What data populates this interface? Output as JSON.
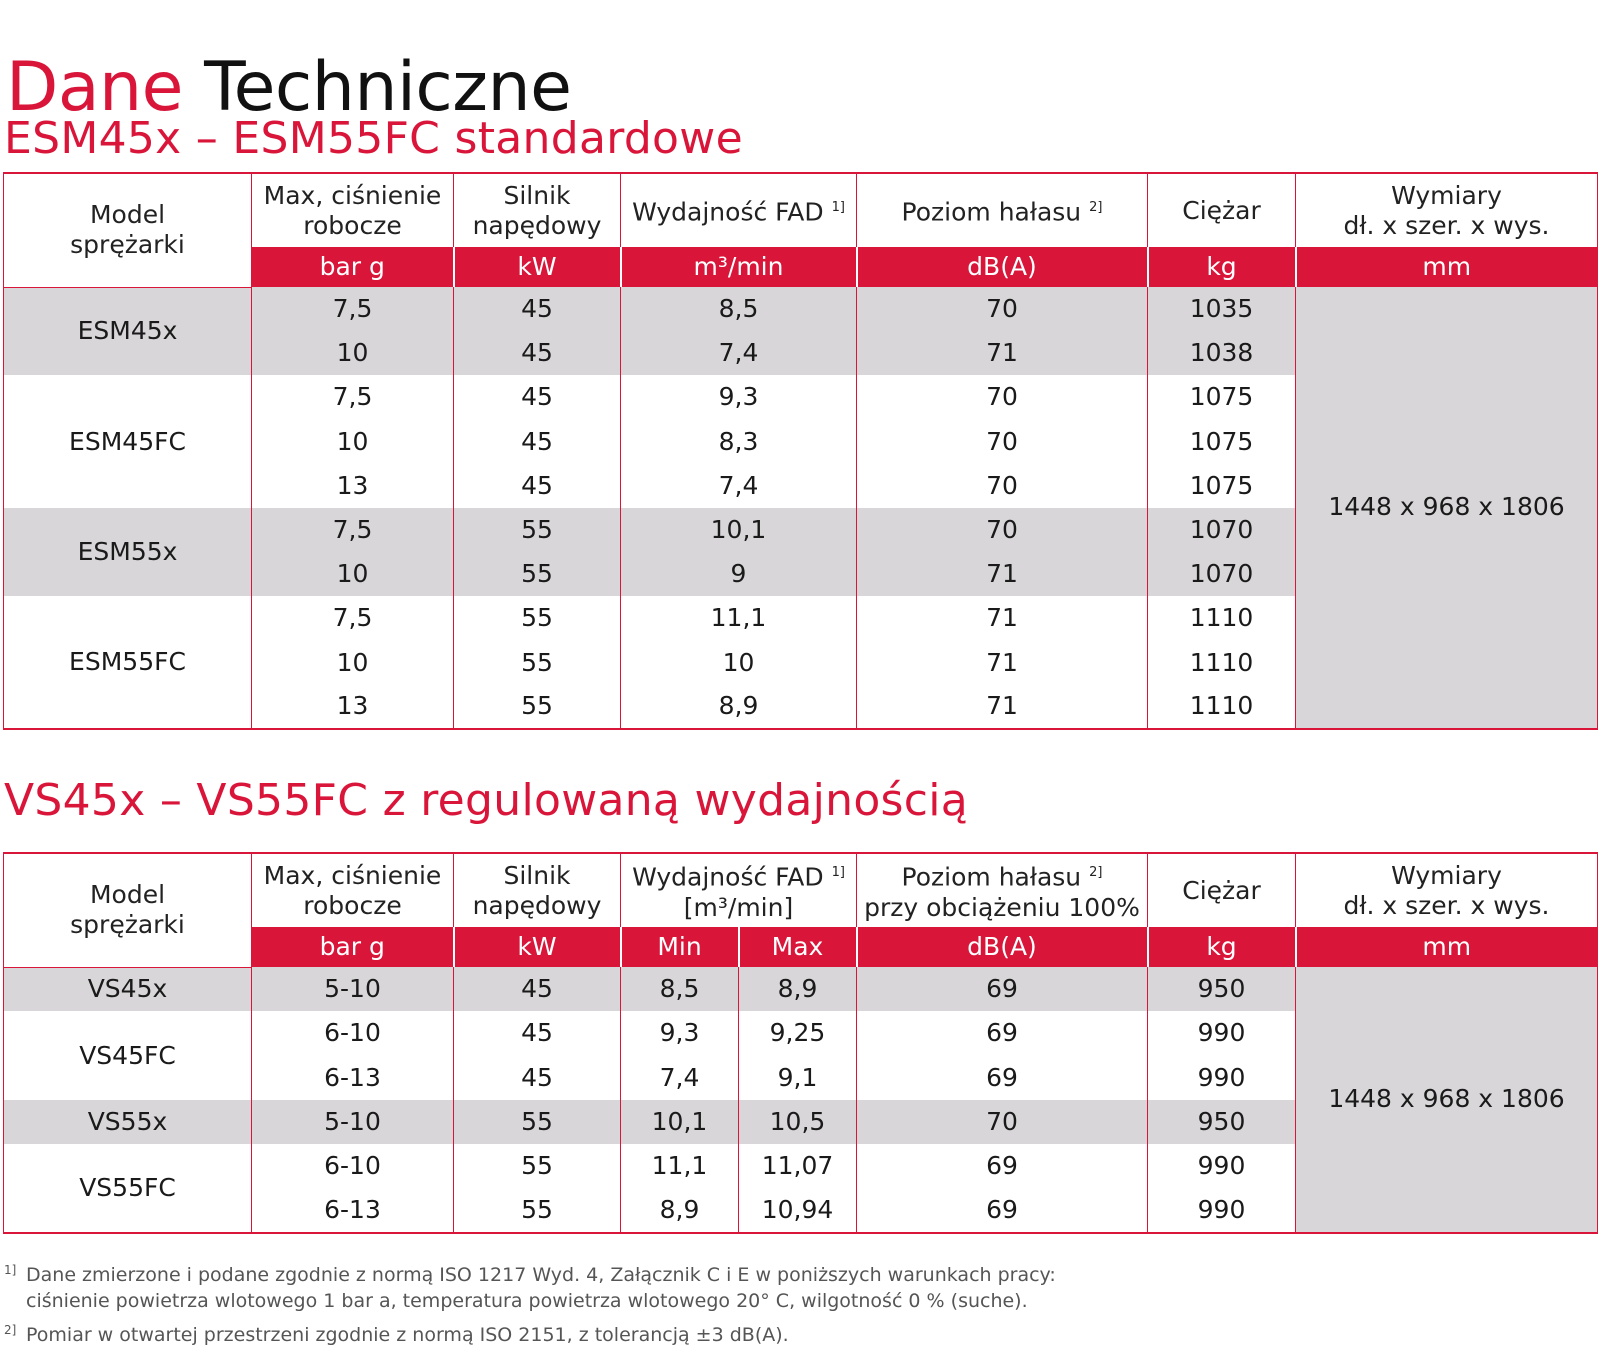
{
  "title": {
    "part1": "Dane",
    "part2": "Techniczne"
  },
  "section1": {
    "title": "ESM45x – ESM55FC standardowe",
    "headers": {
      "model": [
        "Model",
        "sprężarki"
      ],
      "pressure": [
        "Max, ciśnienie",
        "robocze"
      ],
      "motor": [
        "Silnik",
        "napędowy"
      ],
      "fad": "Wydajność FAD",
      "fad_note": "1]",
      "noise": "Poziom hałasu",
      "noise_note": "2]",
      "weight": "Ciężar",
      "dims": [
        "Wymiary",
        "dł. x szer. x wys."
      ]
    },
    "units": {
      "pressure": "bar g",
      "motor": "kW",
      "fad": "m³/min",
      "noise": "dB(A)",
      "weight": "kg",
      "dims": "mm"
    },
    "dimensions": "1448 x 968 x 1806",
    "groups": [
      {
        "model": "ESM45x",
        "rows": [
          {
            "pressure": "7,5",
            "motor": "45",
            "fad": "8,5",
            "noise": "70",
            "weight": "1035"
          },
          {
            "pressure": "10",
            "motor": "45",
            "fad": "7,4",
            "noise": "71",
            "weight": "1038"
          }
        ]
      },
      {
        "model": "ESM45FC",
        "rows": [
          {
            "pressure": "7,5",
            "motor": "45",
            "fad": "9,3",
            "noise": "70",
            "weight": "1075"
          },
          {
            "pressure": "10",
            "motor": "45",
            "fad": "8,3",
            "noise": "70",
            "weight": "1075"
          },
          {
            "pressure": "13",
            "motor": "45",
            "fad": "7,4",
            "noise": "70",
            "weight": "1075"
          }
        ]
      },
      {
        "model": "ESM55x",
        "rows": [
          {
            "pressure": "7,5",
            "motor": "55",
            "fad": "10,1",
            "noise": "70",
            "weight": "1070"
          },
          {
            "pressure": "10",
            "motor": "55",
            "fad": "9",
            "noise": "71",
            "weight": "1070"
          }
        ]
      },
      {
        "model": "ESM55FC",
        "rows": [
          {
            "pressure": "7,5",
            "motor": "55",
            "fad": "11,1",
            "noise": "71",
            "weight": "1110"
          },
          {
            "pressure": "10",
            "motor": "55",
            "fad": "10",
            "noise": "71",
            "weight": "1110"
          },
          {
            "pressure": "13",
            "motor": "55",
            "fad": "8,9",
            "noise": "71",
            "weight": "1110"
          }
        ]
      }
    ]
  },
  "section2": {
    "title": "VS45x – VS55FC z regulowaną wydajnością",
    "headers": {
      "model": [
        "Model",
        "sprężarki"
      ],
      "pressure": [
        "Max, ciśnienie",
        "robocze"
      ],
      "motor": [
        "Silnik",
        "napędowy"
      ],
      "fad": "Wydajność FAD",
      "fad_note": "1]",
      "fad_unit": "[m³/min]",
      "noise": "Poziom hałasu",
      "noise_note": "2]",
      "noise_sub": "przy obciążeniu 100%",
      "weight": "Ciężar",
      "dims": [
        "Wymiary",
        "dł. x szer. x wys."
      ]
    },
    "units": {
      "pressure": "bar g",
      "motor": "kW",
      "fad_min": "Min",
      "fad_max": "Max",
      "noise": "dB(A)",
      "weight": "kg",
      "dims": "mm"
    },
    "dimensions": "1448 x 968 x 1806",
    "groups": [
      {
        "model": "VS45x",
        "rows": [
          {
            "pressure": "5-10",
            "motor": "45",
            "min": "8,5",
            "max": "8,9",
            "noise": "69",
            "weight": "950"
          }
        ]
      },
      {
        "model": "VS45FC",
        "rows": [
          {
            "pressure": "6-10",
            "motor": "45",
            "min": "9,3",
            "max": "9,25",
            "noise": "69",
            "weight": "990"
          },
          {
            "pressure": "6-13",
            "motor": "45",
            "min": "7,4",
            "max": "9,1",
            "noise": "69",
            "weight": "990"
          }
        ]
      },
      {
        "model": "VS55x",
        "rows": [
          {
            "pressure": "5-10",
            "motor": "55",
            "min": "10,1",
            "max": "10,5",
            "noise": "70",
            "weight": "950"
          }
        ]
      },
      {
        "model": "VS55FC",
        "rows": [
          {
            "pressure": "6-10",
            "motor": "55",
            "min": "11,1",
            "max": "11,07",
            "noise": "69",
            "weight": "990"
          },
          {
            "pressure": "6-13",
            "motor": "55",
            "min": "8,9",
            "max": "10,94",
            "noise": "69",
            "weight": "990"
          }
        ]
      }
    ]
  },
  "footnotes": [
    {
      "mark": "1]",
      "lines": [
        "Dane zmierzone i podane zgodnie z normą ISO 1217 Wyd. 4, Załącznik C i E w poniższych warunkach pracy:",
        "ciśnienie powietrza wlotowego 1 bar a, temperatura powietrza wlotowego 20° C, wilgotność 0 % (suche)."
      ]
    },
    {
      "mark": "2]",
      "lines": [
        "Pomiar w otwartej przestrzeni zgodnie z normą ISO 2151, z tolerancją ±3 dB(A)."
      ]
    }
  ]
}
